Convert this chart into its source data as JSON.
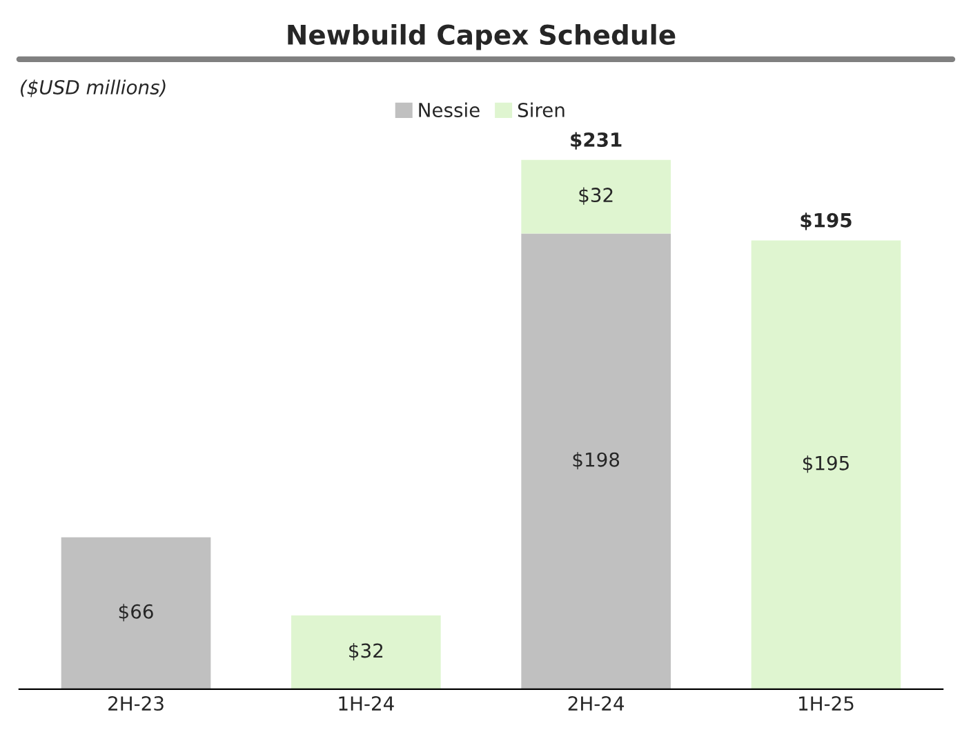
{
  "chart_data": {
    "type": "bar",
    "title": "Newbuild Capex Schedule",
    "annotations": [
      "($USD millions)"
    ],
    "categories": [
      "2H-23",
      "1H-24",
      "2H-24",
      "1H-25"
    ],
    "stacked": true,
    "legend": "top",
    "grid": false,
    "tick_labels": "x",
    "series": [
      {
        "name": "Nessie",
        "color": "#c0c0c0",
        "values": [
          66,
          null,
          198,
          null
        ],
        "value_labels": [
          "$66",
          null,
          "$198",
          null
        ]
      },
      {
        "name": "Siren",
        "color": "#dff5d0",
        "values": [
          null,
          32,
          32,
          195
        ],
        "value_labels": [
          null,
          "$32",
          "$32",
          "$195"
        ]
      }
    ],
    "totals": [
      null,
      null,
      "$231",
      "$195"
    ]
  }
}
